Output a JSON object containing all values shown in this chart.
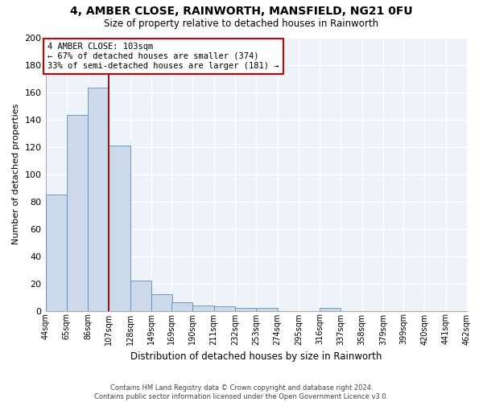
{
  "title": "4, AMBER CLOSE, RAINWORTH, MANSFIELD, NG21 0FU",
  "subtitle": "Size of property relative to detached houses in Rainworth",
  "xlabel": "Distribution of detached houses by size in Rainworth",
  "ylabel": "Number of detached properties",
  "bar_color": "#ccd9eb",
  "bar_edge_color": "#5b8db8",
  "background_color": "#eef2f9",
  "grid_color": "#ffffff",
  "vline_x": 107,
  "vline_color": "#8b1a1a",
  "annotation_line1": "4 AMBER CLOSE: 103sqm",
  "annotation_line2": "← 67% of detached houses are smaller (374)",
  "annotation_line3": "33% of semi-detached houses are larger (181) →",
  "annotation_box_color": "#cc0000",
  "bin_edges": [
    44,
    65,
    86,
    107,
    128,
    149,
    169,
    190,
    211,
    232,
    253,
    274,
    295,
    316,
    337,
    358,
    379,
    399,
    420,
    441,
    462
  ],
  "bin_labels": [
    "44sqm",
    "65sqm",
    "86sqm",
    "107sqm",
    "128sqm",
    "149sqm",
    "169sqm",
    "190sqm",
    "211sqm",
    "232sqm",
    "253sqm",
    "274sqm",
    "295sqm",
    "316sqm",
    "337sqm",
    "358sqm",
    "379sqm",
    "399sqm",
    "420sqm",
    "441sqm",
    "462sqm"
  ],
  "bar_heights": [
    85,
    143,
    163,
    121,
    22,
    12,
    6,
    4,
    3,
    2,
    2,
    0,
    0,
    2,
    0,
    0,
    0,
    0,
    0,
    0
  ],
  "ylim": [
    0,
    200
  ],
  "yticks": [
    0,
    20,
    40,
    60,
    80,
    100,
    120,
    140,
    160,
    180,
    200
  ],
  "footnote": "Contains HM Land Registry data © Crown copyright and database right 2024.\nContains public sector information licensed under the Open Government Licence v3.0."
}
